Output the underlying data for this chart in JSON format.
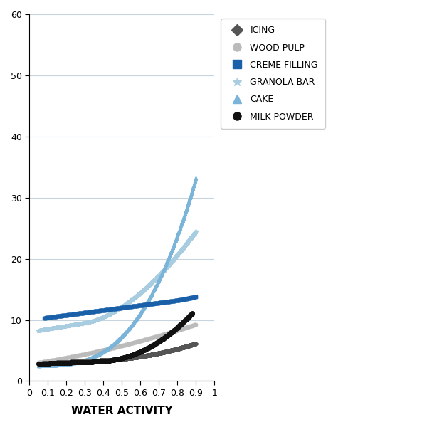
{
  "title": "",
  "xlabel": "WATER ACTIVITY",
  "ylabel": "",
  "xlim": [
    0,
    1.0
  ],
  "ylim": [
    0,
    60
  ],
  "yticks": [
    0,
    10,
    20,
    30,
    40,
    50,
    60
  ],
  "ytick_labels": [
    "0",
    "10",
    "20",
    "30",
    "40",
    "50",
    "60"
  ],
  "xticks": [
    0,
    0.1,
    0.2,
    0.3,
    0.4,
    0.5,
    0.6,
    0.7,
    0.8,
    0.9,
    1.0
  ],
  "xtick_labels": [
    "0",
    "0.1",
    "0.2",
    "0.3",
    "0.4",
    "0.5",
    "0.6",
    "0.7",
    "0.8",
    "0.9",
    "1"
  ],
  "background_color": "#ffffff",
  "grid_color": "#c8d4dd",
  "series": [
    {
      "name": "ICING",
      "color": "#555555",
      "marker": "D",
      "markersize": 3,
      "zorder": 4
    },
    {
      "name": "WOOD PULP",
      "color": "#bbbbbb",
      "marker": "o",
      "markersize": 3,
      "zorder": 2
    },
    {
      "name": "CREME FILLING",
      "color": "#1a60a8",
      "marker": "s",
      "markersize": 3,
      "zorder": 5
    },
    {
      "name": "GRANOLA BAR",
      "color": "#a8cde0",
      "marker": "*",
      "markersize": 4,
      "zorder": 3
    },
    {
      "name": "CAKE",
      "color": "#7ab4d8",
      "marker": "^",
      "markersize": 3,
      "zorder": 3
    },
    {
      "name": "MILK POWDER",
      "color": "#111111",
      "marker": "o",
      "markersize": 4,
      "zorder": 6
    }
  ],
  "legend_marker_colors": [
    "#555555",
    "#bbbbbb",
    "#1a60a8",
    "#a8cde0",
    "#7ab4d8",
    "#111111"
  ],
  "legend_markers": [
    "D",
    "o",
    "s",
    "*",
    "^",
    "o"
  ],
  "legend_labels": [
    "ICING",
    "WOOD PULP",
    "CREME FILLING",
    "GRANOLA BAR",
    "CAKE",
    "MILK POWDER"
  ],
  "legend_fontsize": 9,
  "axis_label_fontsize": 11,
  "tick_fontsize": 9
}
